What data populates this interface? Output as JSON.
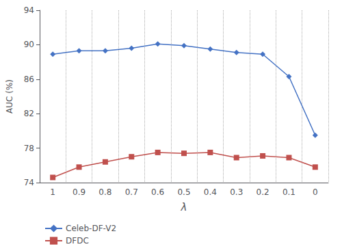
{
  "chart_data": {
    "type": "line",
    "categories": [
      "1",
      "0.9",
      "0.8",
      "0.7",
      "0.6",
      "0.5",
      "0.4",
      "0.3",
      "0.2",
      "0.1",
      "0"
    ],
    "series": [
      {
        "name": "Celeb-DF-V2",
        "color": "#4472C4",
        "marker": "diamond",
        "values": [
          88.9,
          89.3,
          89.3,
          89.6,
          90.1,
          89.9,
          89.5,
          89.1,
          88.9,
          86.3,
          79.5
        ]
      },
      {
        "name": "DFDC",
        "color": "#C0504D",
        "marker": "square",
        "values": [
          74.6,
          75.8,
          76.4,
          77.0,
          77.5,
          77.4,
          77.5,
          76.9,
          77.1,
          76.9,
          75.8
        ]
      }
    ],
    "xlabel": "λ",
    "ylabel": "AUC (%)",
    "ylim": [
      74,
      94
    ],
    "yticks": [
      74,
      78,
      82,
      86,
      90,
      94
    ],
    "grid": "x",
    "legend": "bottom"
  }
}
